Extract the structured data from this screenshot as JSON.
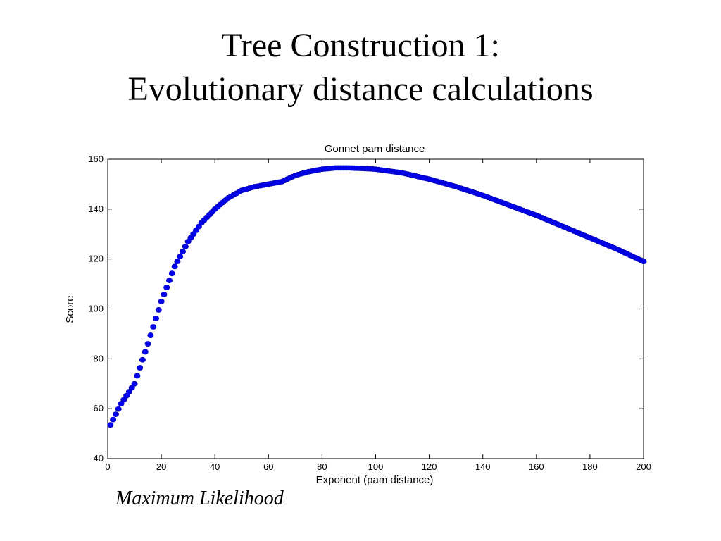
{
  "slide": {
    "title_line1": "Tree Construction 1:",
    "title_line2": "Evolutionary distance calculations",
    "caption": "Maximum Likelihood"
  },
  "chart_data": {
    "type": "scatter",
    "title": "Gonnet pam distance",
    "xlabel": "Exponent (pam distance)",
    "ylabel": "Score",
    "xlim": [
      0,
      200
    ],
    "ylim": [
      40,
      160
    ],
    "xticks": [
      0,
      20,
      40,
      60,
      80,
      100,
      120,
      140,
      160,
      180,
      200
    ],
    "yticks": [
      40,
      60,
      80,
      100,
      120,
      140,
      160
    ],
    "grid": false,
    "marker_color": "#0000ee",
    "series": [
      {
        "x": [
          1,
          5,
          10,
          15,
          20,
          25,
          30,
          35,
          40,
          45,
          50,
          55,
          60,
          65,
          70,
          75,
          80,
          85,
          90,
          95,
          100,
          110,
          120,
          130,
          140,
          150,
          160,
          170,
          180,
          190,
          200
        ],
        "y": [
          53.5,
          62,
          70,
          86,
          103,
          117,
          127,
          134.5,
          140,
          144.5,
          147.5,
          149,
          150,
          151,
          153.5,
          155,
          156,
          156.5,
          156.5,
          156.3,
          156,
          154.5,
          152,
          149,
          145.5,
          141.5,
          137.5,
          133,
          128.5,
          124,
          119
        ]
      }
    ]
  }
}
